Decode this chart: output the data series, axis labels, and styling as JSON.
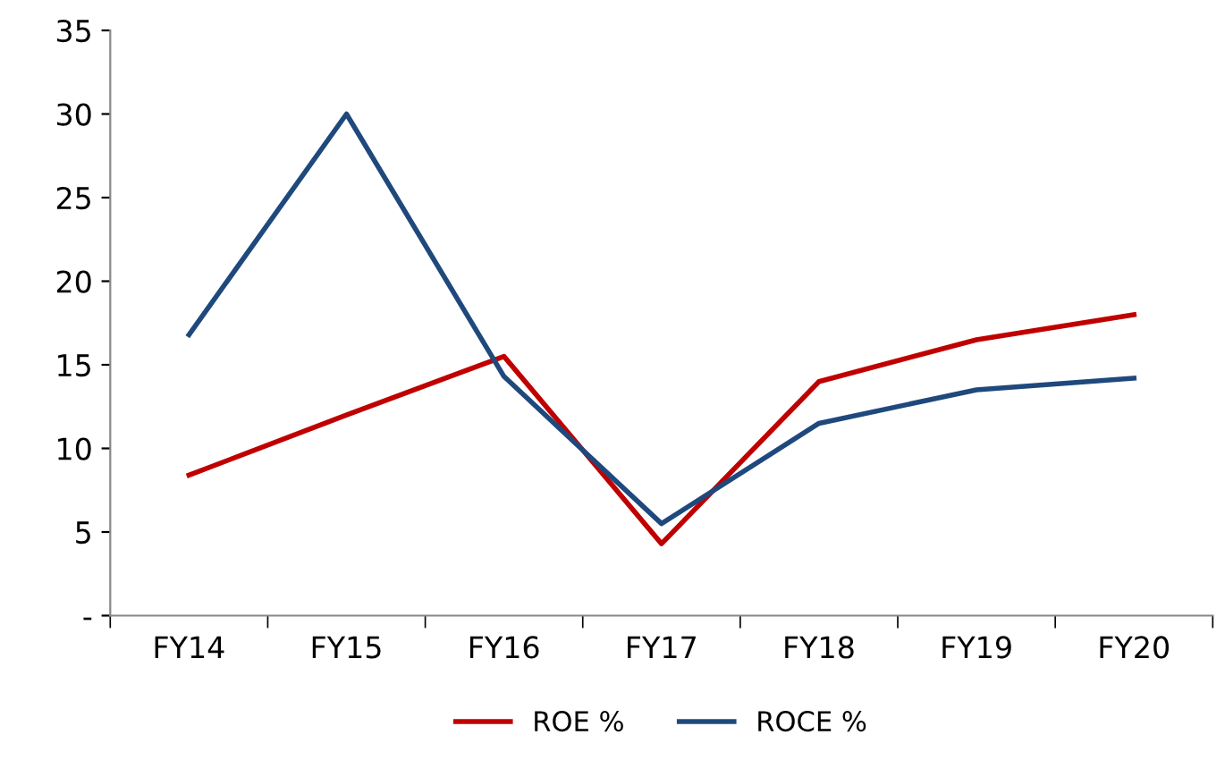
{
  "chart_data": {
    "type": "line",
    "categories": [
      "FY14",
      "FY15",
      "FY16",
      "FY17",
      "FY18",
      "FY19",
      "FY20"
    ],
    "series": [
      {
        "name": "ROE %",
        "color": "#c00000",
        "values": [
          8.4,
          12,
          15.5,
          4.3,
          14,
          16.5,
          18
        ]
      },
      {
        "name": "ROCE %",
        "color": "#1f497d",
        "values": [
          16.8,
          30,
          14.3,
          5.5,
          11.5,
          13.5,
          14.2
        ]
      }
    ],
    "ylim": [
      0,
      35
    ],
    "yticks": [
      {
        "value": 0,
        "label": "-"
      },
      5,
      10,
      15,
      20,
      25,
      30,
      35
    ],
    "grid": false,
    "legend": "bottom",
    "marker": "none",
    "line_style": "solid"
  }
}
